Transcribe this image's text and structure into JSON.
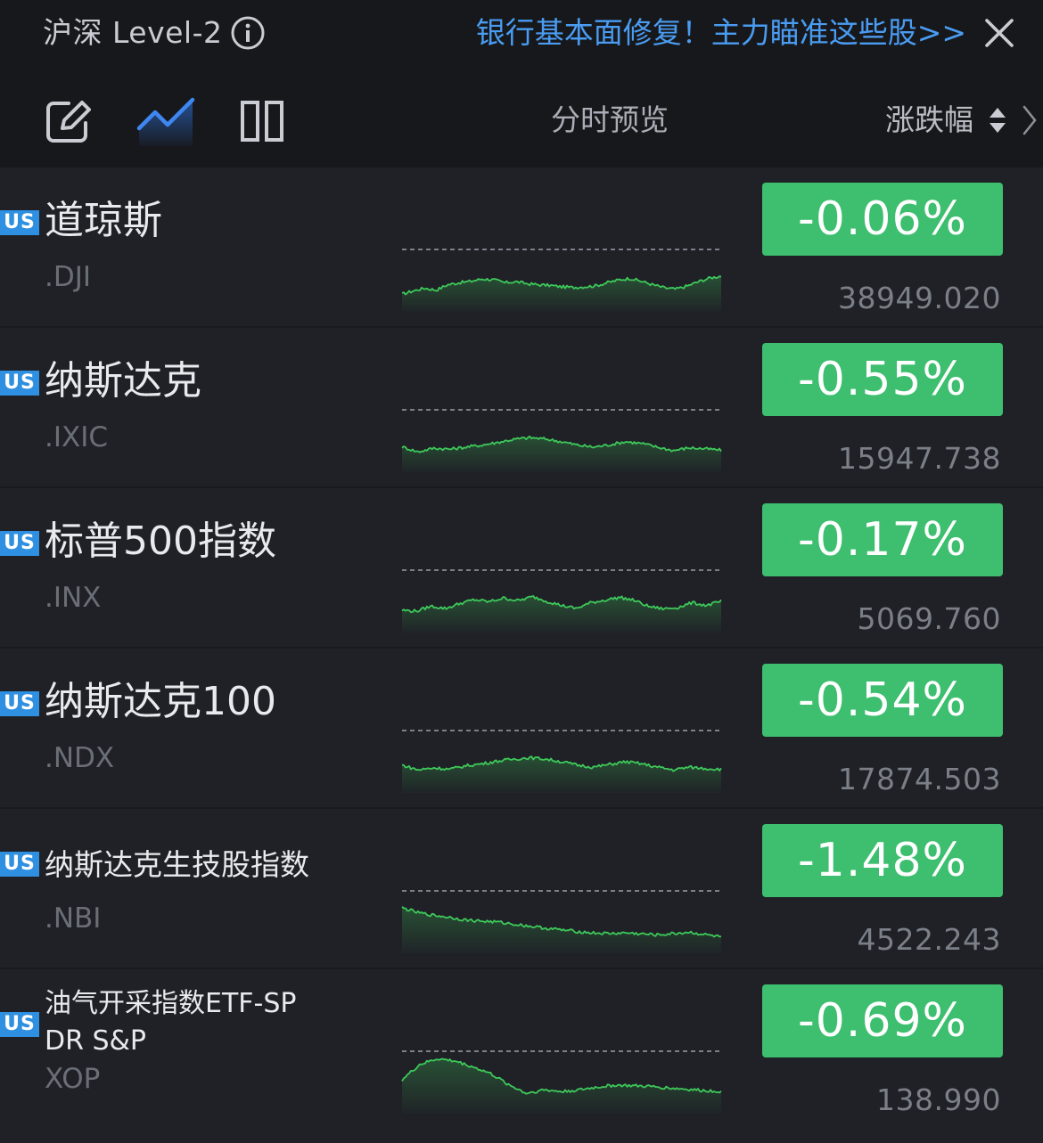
{
  "banner": {
    "title": "沪深 Level-2",
    "promo": "银行基本面修复！主力瞄准这些股>>"
  },
  "toolbar": {
    "preview_label": "分时预览",
    "sort_label": "涨跌幅"
  },
  "colors": {
    "up_down_badge": "#3dbf6f",
    "market_badge": "#2f8fe0",
    "promo_link": "#4a9cf2",
    "sparkline": "#3ec95a"
  },
  "rows": [
    {
      "market": "US",
      "name": "道琼斯",
      "code": ".DJI",
      "change": "-0.06%",
      "price": "38949.020",
      "spark": [
        0.52,
        0.62,
        0.7,
        0.64,
        0.8,
        0.86,
        0.9,
        0.97,
        0.95,
        0.86,
        0.89,
        0.83,
        0.8,
        0.78,
        0.74,
        0.72,
        0.74,
        0.77,
        0.86,
        0.94,
        0.99,
        0.9,
        0.8,
        0.71,
        0.67,
        0.76,
        0.89,
        1.0,
        1.06
      ]
    },
    {
      "market": "US",
      "name": "纳斯达克",
      "code": ".IXIC",
      "change": "-0.55%",
      "price": "15947.738",
      "spark": [
        0.75,
        0.6,
        0.71,
        0.68,
        0.74,
        0.8,
        0.88,
        0.97,
        1.02,
        0.98,
        0.9,
        0.8,
        0.74,
        0.81,
        0.9,
        0.85,
        0.74,
        0.64,
        0.72,
        0.69,
        0.65
      ]
    },
    {
      "market": "US",
      "name": "标普500指数",
      "code": ".INX",
      "change": "-0.17%",
      "price": "5069.760",
      "spark": [
        0.66,
        0.63,
        0.78,
        0.71,
        0.86,
        0.97,
        0.91,
        1.02,
        0.94,
        1.06,
        0.92,
        0.8,
        0.71,
        0.88,
        0.96,
        1.04,
        0.95,
        0.77,
        0.7,
        0.74,
        0.88,
        0.8,
        0.92
      ]
    },
    {
      "market": "US",
      "name": "纳斯达克100",
      "code": ".NDX",
      "change": "-0.54%",
      "price": "17874.503",
      "spark": [
        0.82,
        0.68,
        0.74,
        0.7,
        0.8,
        0.86,
        0.94,
        1.0,
        1.04,
        1.0,
        0.92,
        0.82,
        0.76,
        0.84,
        0.92,
        0.86,
        0.76,
        0.68,
        0.76,
        0.72,
        0.7
      ]
    },
    {
      "market": "US",
      "name": "纳斯达克生技股指数",
      "code": ".NBI",
      "change": "-1.48%",
      "price": "4522.243",
      "spark": [
        1.34,
        1.2,
        1.12,
        1.06,
        0.98,
        0.95,
        0.92,
        0.86,
        0.8,
        0.74,
        0.69,
        0.64,
        0.6,
        0.58,
        0.6,
        0.57,
        0.54,
        0.58,
        0.62,
        0.55,
        0.48
      ]
    },
    {
      "market": "US",
      "name": "油气开采指数ETF-SPDR S&P",
      "code": "XOP",
      "change": "-0.69%",
      "price": "138.990",
      "spark": [
        1.0,
        1.45,
        1.62,
        1.55,
        1.38,
        1.18,
        0.86,
        0.6,
        0.7,
        0.65,
        0.7,
        0.78,
        0.84,
        0.82,
        0.8,
        0.76,
        0.72,
        0.68,
        0.66
      ]
    }
  ]
}
